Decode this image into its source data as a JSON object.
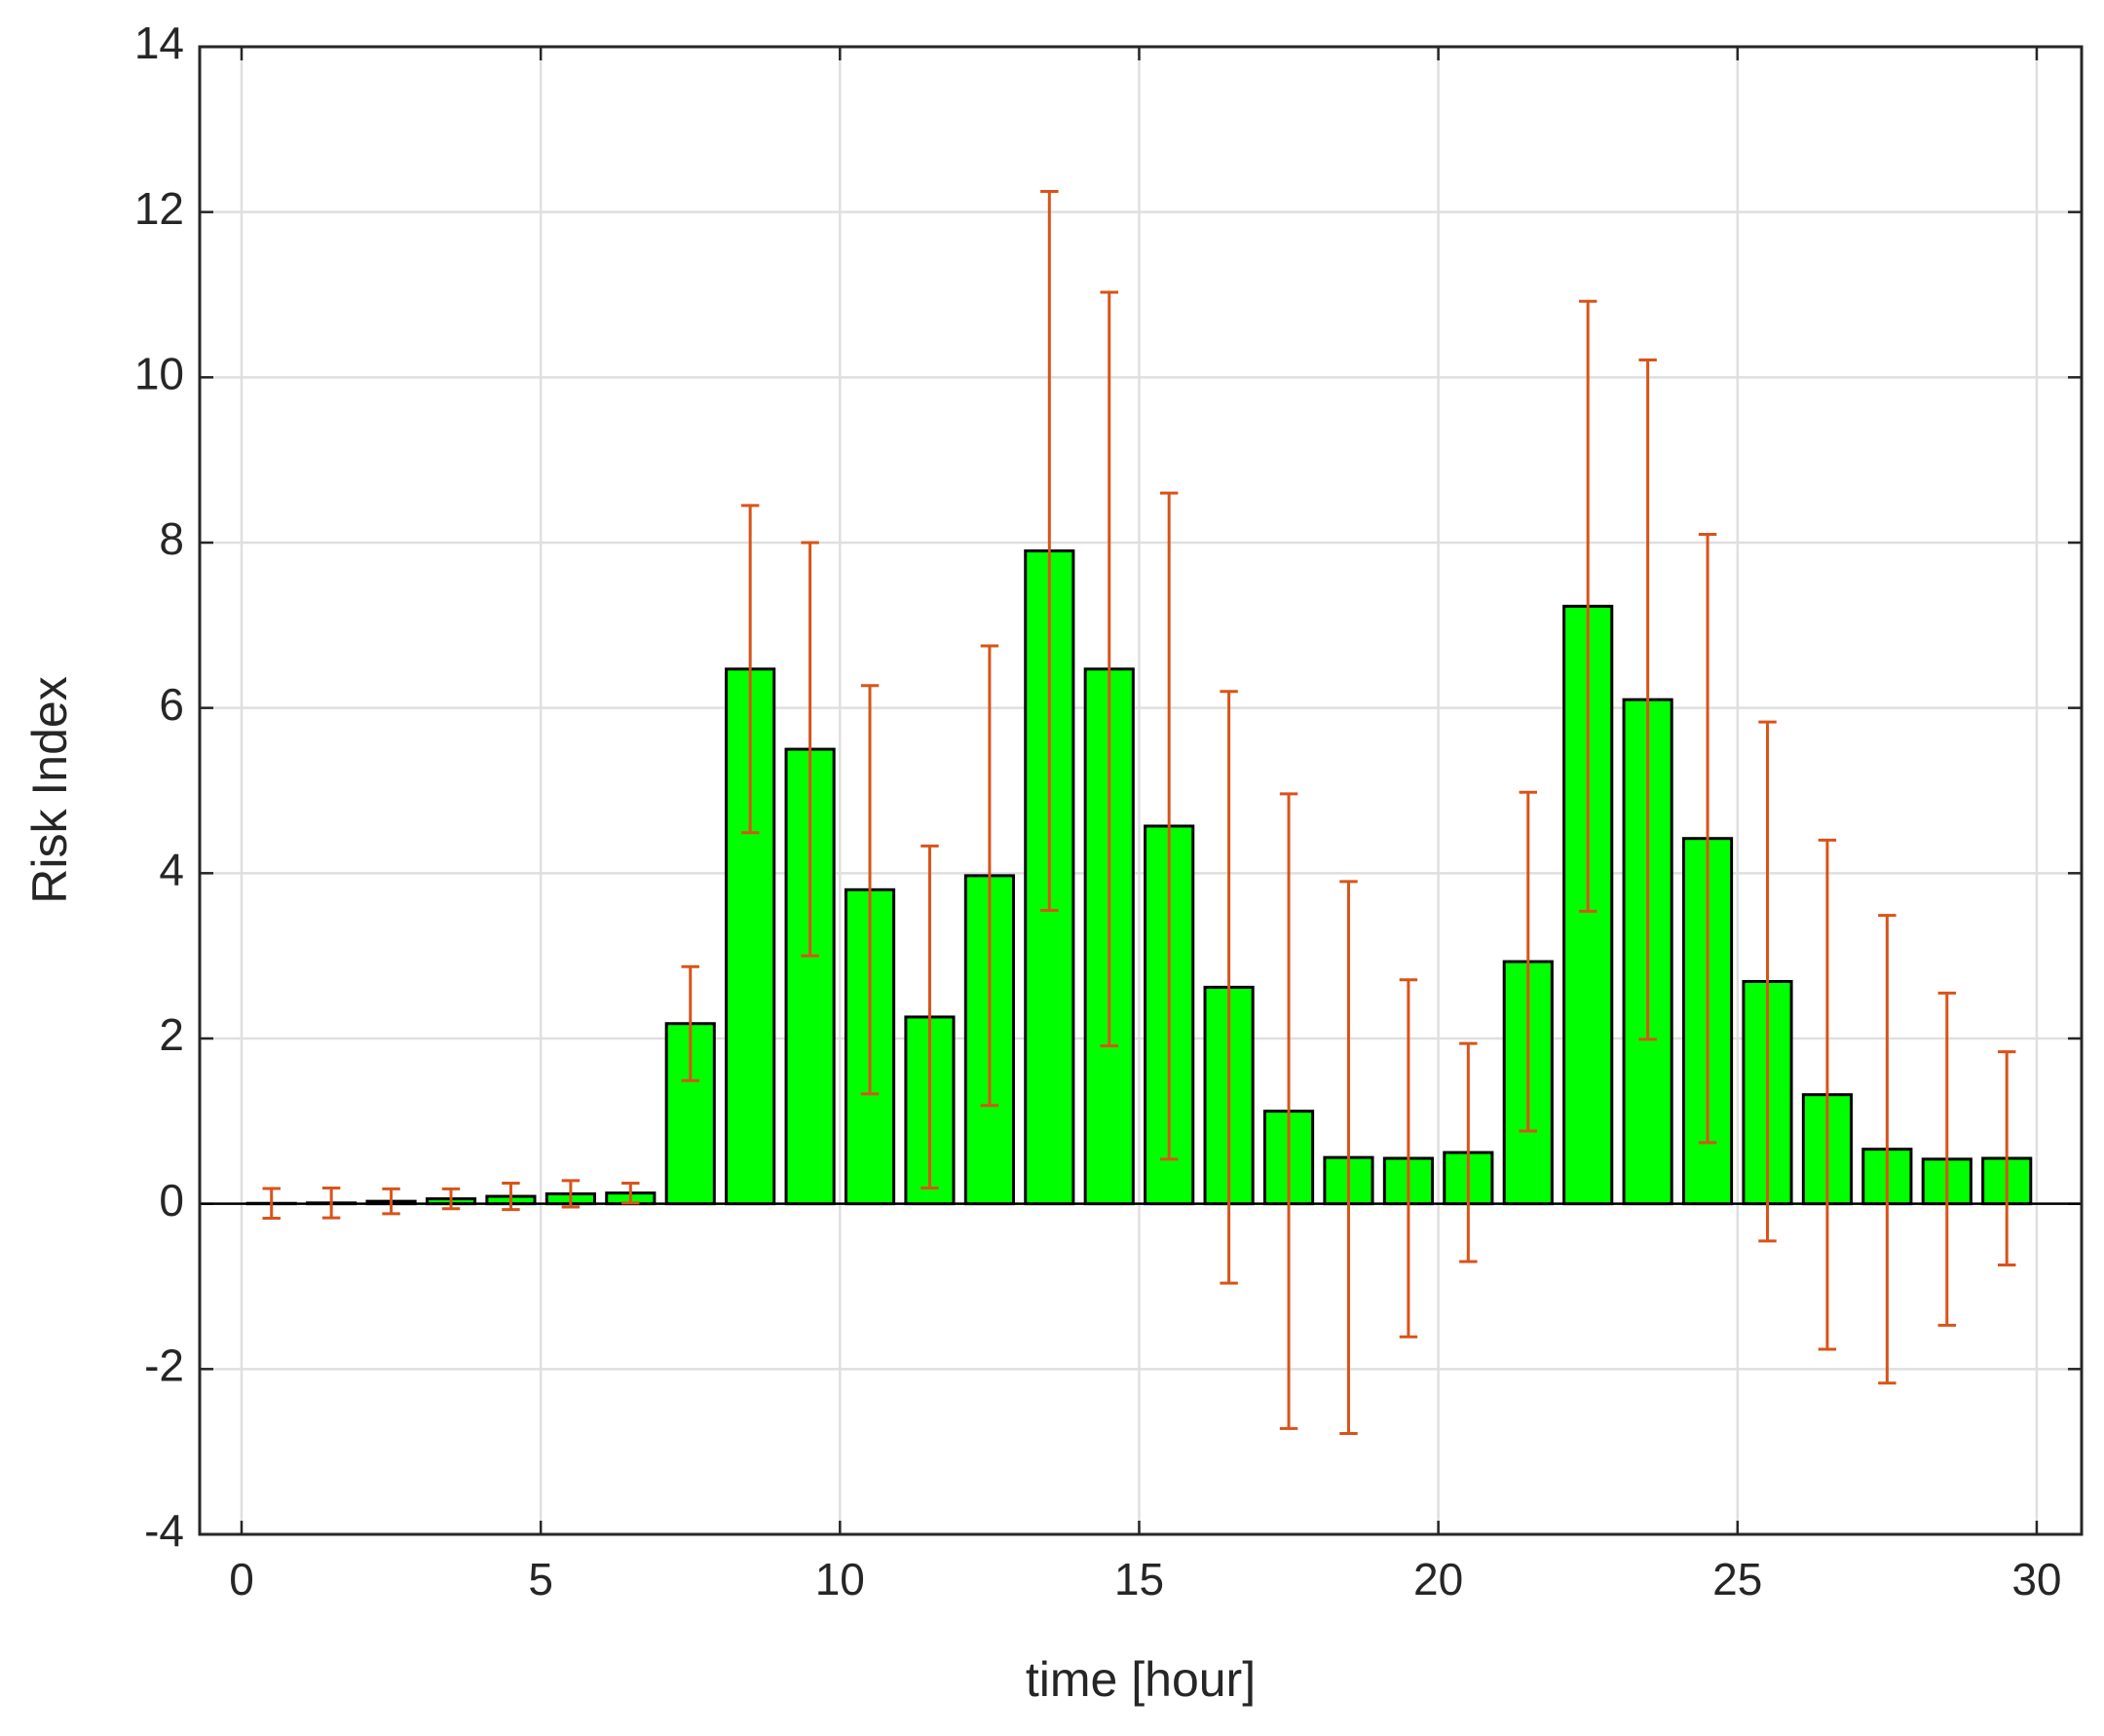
{
  "chart_data": {
    "type": "bar",
    "xlabel": "time [hour]",
    "ylabel": "Risk Index",
    "x": [
      0.5,
      1.5,
      2.5,
      3.5,
      4.5,
      5.5,
      6.5,
      7.5,
      8.5,
      9.5,
      10.5,
      11.5,
      12.5,
      13.5,
      14.5,
      15.5,
      16.5,
      17.5,
      18.5,
      19.5,
      20.5,
      21.5,
      22.5,
      23.5,
      24.5,
      25.5,
      26.5,
      27.5,
      28.5,
      29.5
    ],
    "values": [
      0.005,
      0.01,
      0.03,
      0.06,
      0.09,
      0.12,
      0.13,
      2.18,
      6.47,
      5.5,
      3.8,
      2.26,
      3.97,
      7.9,
      6.47,
      4.57,
      2.62,
      1.12,
      0.56,
      0.55,
      0.62,
      2.93,
      7.23,
      6.1,
      4.42,
      2.69,
      1.32,
      0.66,
      0.54,
      0.55
    ],
    "errors": [
      0.18,
      0.18,
      0.15,
      0.12,
      0.16,
      0.16,
      0.12,
      0.69,
      1.98,
      2.5,
      2.47,
      2.07,
      2.78,
      4.35,
      4.56,
      4.03,
      3.58,
      3.84,
      3.34,
      2.16,
      1.32,
      2.05,
      3.69,
      4.11,
      3.68,
      3.14,
      3.08,
      2.83,
      2.01,
      1.29
    ],
    "color": "#00ff00",
    "error_color": "#d95319",
    "xlim": [
      -0.7,
      30.75
    ],
    "ylim": [
      -4,
      14
    ],
    "xticks": [
      0,
      5,
      10,
      15,
      20,
      25,
      30
    ],
    "yticks": [
      -4,
      -2,
      0,
      2,
      4,
      6,
      8,
      10,
      12,
      14
    ],
    "grid": true
  }
}
